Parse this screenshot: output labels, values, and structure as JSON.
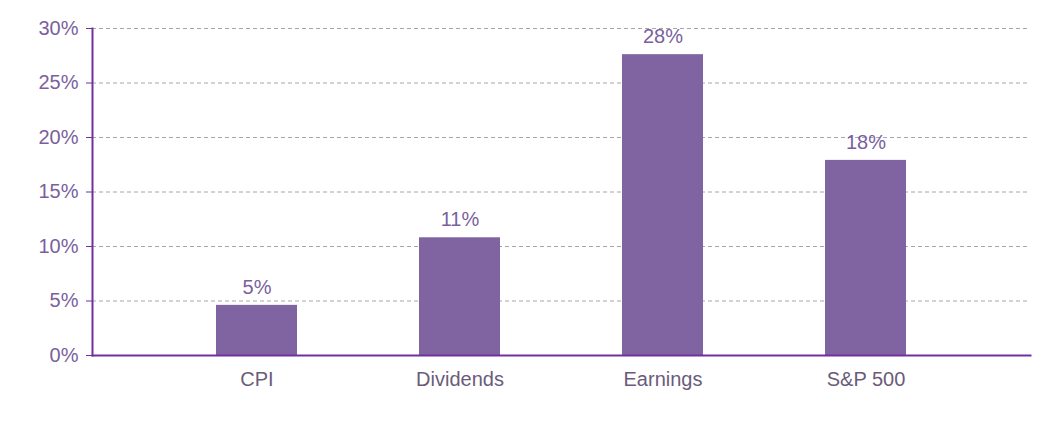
{
  "chart_data": {
    "type": "bar",
    "categories": [
      "CPI",
      "Dividends",
      "Earnings",
      "S&P 500"
    ],
    "values": [
      4.6,
      10.8,
      27.6,
      17.9
    ],
    "value_labels": [
      "5%",
      "11%",
      "28%",
      "18%"
    ],
    "color": "#8064a2",
    "ylim": [
      0,
      30
    ],
    "yticks": [
      {
        "value": 0,
        "label": "0%"
      },
      {
        "value": 5,
        "label": "5%"
      },
      {
        "value": 10,
        "label": "10%"
      },
      {
        "value": 15,
        "label": "15%"
      },
      {
        "value": 20,
        "label": "20%"
      },
      {
        "value": 25,
        "label": "25%"
      },
      {
        "value": 30,
        "label": "30%"
      }
    ],
    "grid": true,
    "data_labels": true
  }
}
